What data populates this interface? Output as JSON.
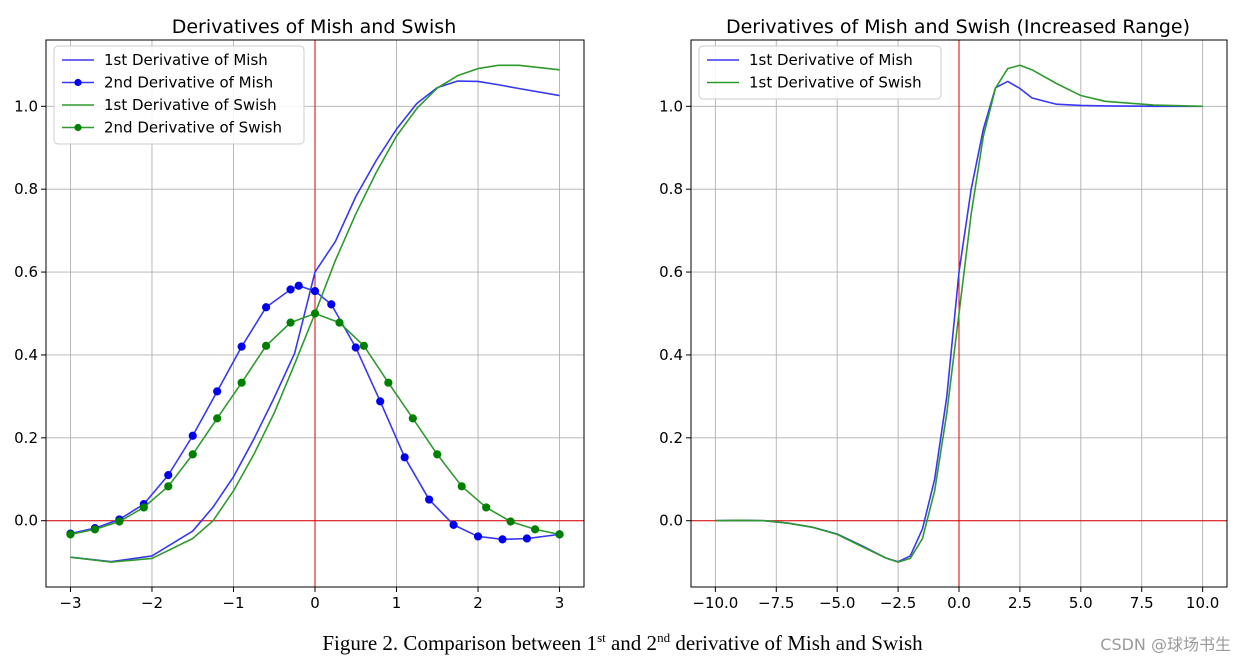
{
  "caption": {
    "prefix": "Figure 2. Comparison between 1",
    "sup1": "st",
    "mid": " and 2",
    "sup2": "nd",
    "suffix": " derivative of Mish and Swish"
  },
  "watermark": "CSDN @球场书生",
  "colors": {
    "blue": "#3838f2",
    "green": "#2e9a2e",
    "blue_dot": "#0000ee",
    "green_dot": "#008000",
    "axis_line": "#e00000",
    "grid": "#b0b0b0"
  },
  "chart_data": [
    {
      "type": "line",
      "title": "Derivatives of Mish and Swish",
      "xlim": [
        -3.3,
        3.3
      ],
      "ylim": [
        -0.16,
        1.16
      ],
      "xticks": [
        -3,
        -2,
        -1,
        0,
        1,
        2,
        3
      ],
      "xtick_labels": [
        "−3",
        "−2",
        "−1",
        "0",
        "1",
        "2",
        "3"
      ],
      "yticks": [
        0.0,
        0.2,
        0.4,
        0.6,
        0.8,
        1.0
      ],
      "ytick_labels": [
        "0.0",
        "0.2",
        "0.4",
        "0.6",
        "0.8",
        "1.0"
      ],
      "grid": true,
      "legend_position": "top-left",
      "reference_lines": {
        "x": 0,
        "y": 0
      },
      "series": [
        {
          "name": "1st Derivative of Mish",
          "color": "blue",
          "marker": false,
          "x": [
            -3.0,
            -2.5,
            -2.0,
            -1.5,
            -1.25,
            -1.0,
            -0.75,
            -0.5,
            -0.25,
            0.0,
            0.25,
            0.5,
            0.75,
            1.0,
            1.25,
            1.5,
            1.75,
            2.0,
            2.25,
            2.5,
            3.0
          ],
          "y": [
            -0.088,
            -0.099,
            -0.085,
            -0.025,
            0.033,
            0.106,
            0.197,
            0.297,
            0.404,
            0.6,
            0.674,
            0.782,
            0.869,
            0.945,
            1.007,
            1.045,
            1.061,
            1.06,
            1.052,
            1.043,
            1.026
          ]
        },
        {
          "name": "2nd Derivative of Mish",
          "color": "blue",
          "marker": true,
          "x": [
            -3.0,
            -2.7,
            -2.4,
            -2.1,
            -1.8,
            -1.5,
            -1.2,
            -0.9,
            -0.6,
            -0.3,
            -0.2,
            0.0,
            0.2,
            0.5,
            0.8,
            1.1,
            1.4,
            1.7,
            2.0,
            2.3,
            2.6,
            3.0
          ],
          "y": [
            -0.031,
            -0.018,
            0.003,
            0.04,
            0.11,
            0.205,
            0.312,
            0.42,
            0.515,
            0.558,
            0.567,
            0.554,
            0.522,
            0.418,
            0.288,
            0.153,
            0.051,
            -0.01,
            -0.038,
            -0.045,
            -0.043,
            -0.033
          ]
        },
        {
          "name": "1st Derivative of Swish",
          "color": "green",
          "marker": false,
          "x": [
            -3.0,
            -2.5,
            -2.0,
            -1.5,
            -1.25,
            -1.0,
            -0.75,
            -0.5,
            -0.25,
            0.0,
            0.25,
            0.5,
            0.75,
            1.0,
            1.25,
            1.5,
            1.75,
            2.0,
            2.25,
            2.5,
            3.0
          ],
          "y": [
            -0.088,
            -0.1,
            -0.091,
            -0.043,
            0.0,
            0.072,
            0.16,
            0.26,
            0.378,
            0.5,
            0.628,
            0.74,
            0.84,
            0.928,
            0.995,
            1.044,
            1.074,
            1.091,
            1.099,
            1.099,
            1.088
          ]
        },
        {
          "name": "2nd Derivative of Swish",
          "color": "green",
          "marker": true,
          "x": [
            -3.0,
            -2.7,
            -2.4,
            -2.1,
            -1.8,
            -1.5,
            -1.2,
            -0.9,
            -0.6,
            -0.3,
            0.0,
            0.3,
            0.6,
            0.9,
            1.2,
            1.5,
            1.8,
            2.1,
            2.4,
            2.7,
            3.0
          ],
          "y": [
            -0.033,
            -0.021,
            -0.002,
            0.032,
            0.083,
            0.16,
            0.247,
            0.333,
            0.422,
            0.478,
            0.5,
            0.478,
            0.422,
            0.333,
            0.247,
            0.16,
            0.083,
            0.032,
            -0.002,
            -0.021,
            -0.033
          ]
        }
      ]
    },
    {
      "type": "line",
      "title": "Derivatives of Mish and Swish (Increased Range)",
      "xlim": [
        -11.0,
        11.0
      ],
      "ylim": [
        -0.16,
        1.16
      ],
      "xticks": [
        -10.0,
        -7.5,
        -5.0,
        -2.5,
        0.0,
        2.5,
        5.0,
        7.5,
        10.0
      ],
      "xtick_labels": [
        "−10.0",
        "−7.5",
        "−5.0",
        "−2.5",
        "0.0",
        "2.5",
        "5.0",
        "7.5",
        "10.0"
      ],
      "yticks": [
        0.0,
        0.2,
        0.4,
        0.6,
        0.8,
        1.0
      ],
      "ytick_labels": [
        "0.0",
        "0.2",
        "0.4",
        "0.6",
        "0.8",
        "1.0"
      ],
      "grid": true,
      "legend_position": "top-left",
      "reference_lines": {
        "x": 0,
        "y": 0
      },
      "series": [
        {
          "name": "1st Derivative of Mish",
          "color": "blue",
          "marker": false,
          "x": [
            -10,
            -9,
            -8,
            -7,
            -6,
            -5,
            -4,
            -3,
            -2.5,
            -2,
            -1.5,
            -1,
            -0.5,
            0,
            0.5,
            1,
            1.5,
            2,
            2.5,
            3,
            4,
            5,
            6,
            8,
            10
          ],
          "y": [
            0.0,
            0.001,
            0.0,
            -0.006,
            -0.016,
            -0.032,
            -0.06,
            -0.09,
            -0.099,
            -0.085,
            -0.02,
            0.1,
            0.3,
            0.6,
            0.8,
            0.945,
            1.045,
            1.06,
            1.043,
            1.02,
            1.005,
            1.002,
            1.001,
            1.0,
            1.0
          ]
        },
        {
          "name": "1st Derivative of Swish",
          "color": "green",
          "marker": false,
          "x": [
            -10,
            -9,
            -8,
            -7,
            -6,
            -5,
            -4,
            -3,
            -2.5,
            -2,
            -1.5,
            -1,
            -0.5,
            0,
            0.5,
            1,
            1.5,
            2,
            2.5,
            3,
            4,
            5,
            6,
            8,
            10
          ],
          "y": [
            0.0,
            0.001,
            0.0,
            -0.006,
            -0.016,
            -0.033,
            -0.062,
            -0.09,
            -0.1,
            -0.091,
            -0.043,
            0.072,
            0.26,
            0.5,
            0.74,
            0.928,
            1.044,
            1.091,
            1.099,
            1.088,
            1.055,
            1.026,
            1.012,
            1.003,
            1.0
          ]
        }
      ]
    }
  ]
}
